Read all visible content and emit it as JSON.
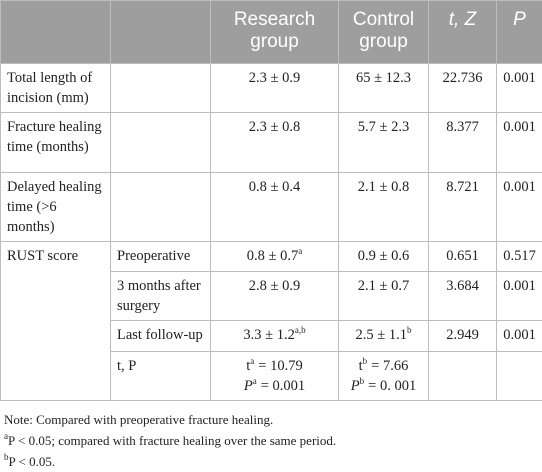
{
  "table": {
    "header": [
      "Research group",
      "Control group",
      "t, Z",
      "P"
    ],
    "rows": [
      {
        "label": "Total length of incision (mm)",
        "research": {
          "text": "2.3 ± 0.9"
        },
        "control": {
          "text": "65 ± 12.3"
        },
        "stat": "22.736",
        "p": "0.001"
      },
      {
        "label": "Fracture healing time (months)",
        "research": {
          "text": "2.3 ± 0.8"
        },
        "control": {
          "text": "5.7 ± 2.3"
        },
        "stat": "8.377",
        "p": "0.001"
      },
      {
        "label": "Delayed healing time (>6 months)",
        "research": {
          "text": "0.8 ± 0.4"
        },
        "control": {
          "text": "2.1 ± 0.8"
        },
        "stat": "8.721",
        "p": "0.001"
      }
    ],
    "rust": {
      "label": "RUST score",
      "rows": [
        {
          "label": "Preoperative",
          "research": {
            "text": "0.8 ± 0.7",
            "sup": "a"
          },
          "control": {
            "text": "0.9 ± 0.6"
          },
          "stat": "0.651",
          "p": "0.517"
        },
        {
          "label": "3 months after surgery",
          "research": {
            "text": "2.8 ± 0.9"
          },
          "control": {
            "text": "2.1 ± 0.7"
          },
          "stat": "3.684",
          "p": "0.001"
        },
        {
          "label": "Last follow-up",
          "research": {
            "text": "3.3 ± 1.2",
            "sup": "a,b"
          },
          "control": {
            "text": "2.5 ± 1.1",
            "sup": "b"
          },
          "stat": "2.949",
          "p": "0.001"
        }
      ],
      "test": {
        "label": "t, P",
        "research": [
          {
            "base": "t",
            "sup": "a",
            "rest": "= 10.79"
          },
          {
            "base": "P",
            "sup": "a",
            "rest": "= 0.001"
          }
        ],
        "control": [
          {
            "base": "t",
            "sup": "b",
            "rest": "= 7.66"
          },
          {
            "base": "P",
            "sup": "b",
            "rest": "= 0. 001"
          }
        ]
      }
    }
  },
  "notes": [
    "Note: Compared with preoperative fracture healing.",
    {
      "sup": "a",
      "text": "P < 0.05; compared with fracture healing over the same period."
    },
    {
      "sup": "b",
      "text": "P < 0.05."
    }
  ]
}
